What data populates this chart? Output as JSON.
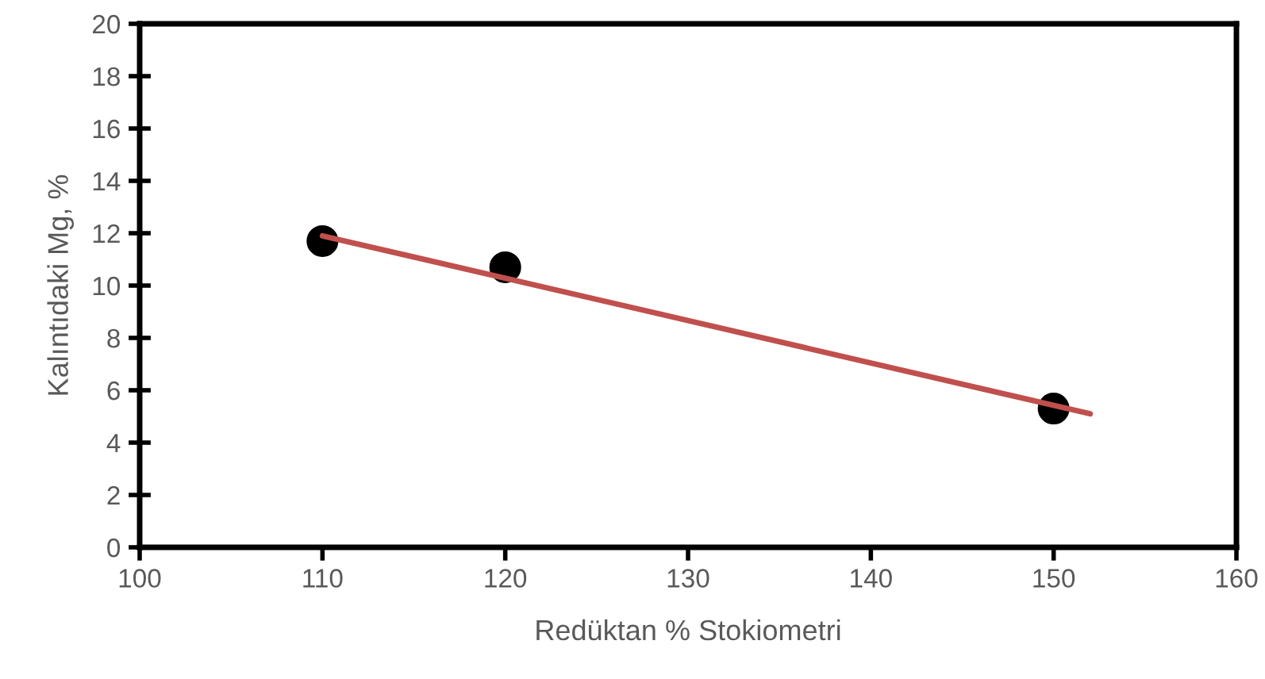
{
  "chart_data": {
    "type": "scatter",
    "xlabel": "Redüktan % Stokiometri",
    "ylabel": "Kalıntıdaki Mg, %",
    "xlim": [
      100,
      160
    ],
    "xticks": [
      100,
      110,
      120,
      130,
      140,
      150,
      160
    ],
    "ylim": [
      0,
      20
    ],
    "yticks": [
      0,
      2,
      4,
      6,
      8,
      10,
      12,
      14,
      16,
      18,
      20
    ],
    "grid": false,
    "legend": false,
    "series": [
      {
        "x": [
          110,
          120,
          150
        ],
        "values": [
          11.7,
          10.7,
          5.3
        ],
        "color": "#000000",
        "marker": "circle"
      },
      {
        "type": "line",
        "x": [
          110,
          152
        ],
        "values": [
          11.9,
          5.1
        ],
        "color": "#c0504d",
        "marker": "none",
        "line_style": "solid"
      }
    ]
  }
}
